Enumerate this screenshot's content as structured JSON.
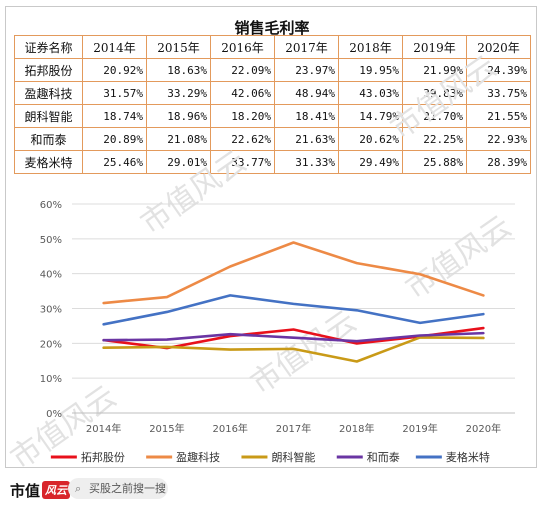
{
  "table": {
    "title": "销售毛利率",
    "name_header": "证券名称",
    "years": [
      "2014年",
      "2015年",
      "2016年",
      "2017年",
      "2018年",
      "2019年",
      "2020年"
    ],
    "rows": [
      {
        "name": "拓邦股份",
        "values": [
          "20.92%",
          "18.63%",
          "22.09%",
          "23.97%",
          "19.95%",
          "21.99%",
          "24.39%"
        ]
      },
      {
        "name": "盈趣科技",
        "values": [
          "31.57%",
          "33.29%",
          "42.06%",
          "48.94%",
          "43.03%",
          "39.83%",
          "33.75%"
        ]
      },
      {
        "name": "朗科智能",
        "values": [
          "18.74%",
          "18.96%",
          "18.20%",
          "18.41%",
          "14.79%",
          "21.70%",
          "21.55%"
        ]
      },
      {
        "name": "和而泰",
        "values": [
          "20.89%",
          "21.08%",
          "22.62%",
          "21.63%",
          "20.62%",
          "22.25%",
          "22.93%"
        ]
      },
      {
        "name": "麦格米特",
        "values": [
          "25.46%",
          "29.01%",
          "33.77%",
          "31.33%",
          "29.49%",
          "25.88%",
          "28.39%"
        ]
      }
    ]
  },
  "chart_data": {
    "type": "line",
    "categories": [
      "2014年",
      "2015年",
      "2016年",
      "2017年",
      "2018年",
      "2019年",
      "2020年"
    ],
    "y_ticks": [
      "0%",
      "10%",
      "20%",
      "30%",
      "40%",
      "50%",
      "60%"
    ],
    "ylim": [
      0,
      60
    ],
    "grid": true,
    "legend_position": "bottom",
    "series": [
      {
        "name": "拓邦股份",
        "color": "#e8101b",
        "values": [
          20.92,
          18.63,
          22.09,
          23.97,
          19.95,
          21.99,
          24.39
        ]
      },
      {
        "name": "盈趣科技",
        "color": "#ed8a46",
        "values": [
          31.57,
          33.29,
          42.06,
          48.94,
          43.03,
          39.83,
          33.75
        ]
      },
      {
        "name": "朗科智能",
        "color": "#c99a17",
        "values": [
          18.74,
          18.96,
          18.2,
          18.41,
          14.79,
          21.7,
          21.55
        ]
      },
      {
        "name": "和而泰",
        "color": "#6a35a3",
        "values": [
          20.89,
          21.08,
          22.62,
          21.63,
          20.62,
          22.25,
          22.93
        ]
      },
      {
        "name": "麦格米特",
        "color": "#4472c4",
        "values": [
          25.46,
          29.01,
          33.77,
          31.33,
          29.49,
          25.88,
          28.39
        ]
      }
    ]
  },
  "watermark": "市值风云",
  "footer": {
    "brand_text": "市值",
    "brand_mark": "风云",
    "search_icon": "search-icon",
    "search_text": "买股之前搜一搜"
  }
}
